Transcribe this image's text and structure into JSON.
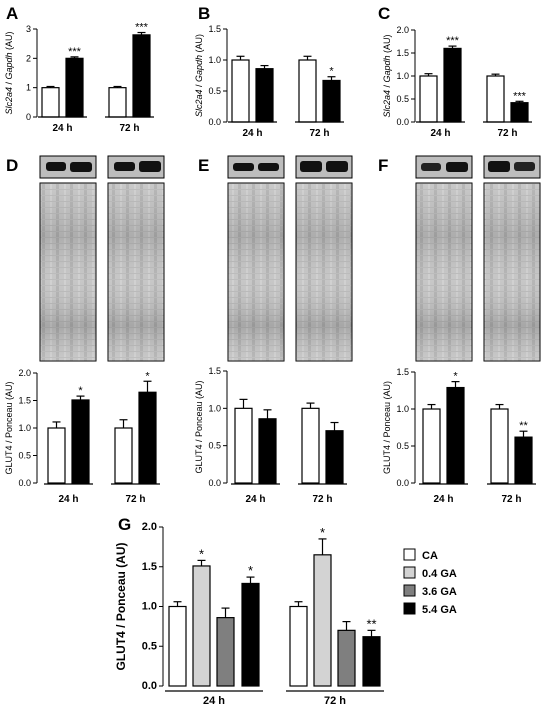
{
  "colors": {
    "CA": "#ffffff",
    "GA_0_4": "#d3d3d3",
    "GA_3_6": "#7f7f7f",
    "GA_5_4": "#000000",
    "blot_bg": "#bdbdbd",
    "blot_band": "#111111"
  },
  "panels": {
    "A": {
      "letter": "A",
      "ylabel": "Slc2a4 / Gapdh (AU)",
      "groups": [
        "24 h",
        "72 h"
      ]
    },
    "B": {
      "letter": "B",
      "ylabel": "Slc2a4 / Gapdh (AU)",
      "groups": [
        "24 h",
        "72 h"
      ]
    },
    "C": {
      "letter": "C",
      "ylabel": "Slc2a4 / Gapdh (AU)",
      "groups": [
        "24 h",
        "72 h"
      ]
    },
    "D": {
      "letter": "D",
      "ylabel": "GLUT4 / Ponceau (AU)",
      "groups": [
        "24 h",
        "72 h"
      ]
    },
    "E": {
      "letter": "E",
      "ylabel": "GLUT4 / Ponceau (AU)",
      "groups": [
        "24 h",
        "72 h"
      ]
    },
    "F": {
      "letter": "F",
      "ylabel": "GLUT4 / Ponceau (AU)",
      "groups": [
        "24 h",
        "72 h"
      ]
    },
    "G": {
      "letter": "G",
      "ylabel": "GLUT4 / Ponceau (AU)",
      "groups": [
        "24 h",
        "72 h"
      ]
    }
  },
  "legend": [
    "CA",
    "0.4 GA",
    "3.6 GA",
    "5.4 GA"
  ],
  "chart_data": [
    {
      "panel": "A",
      "type": "bar",
      "ylabel": "Slc2a4 / Gapdh (AU)",
      "categories": [
        "24 h",
        "72 h"
      ],
      "ylim": [
        0,
        3
      ],
      "yticks": [
        "0",
        "1",
        "2",
        "3"
      ],
      "series": [
        {
          "fill": "#ffffff",
          "values": [
            1.0,
            1.0
          ],
          "errors": [
            0.04,
            0.04
          ]
        },
        {
          "fill": "#000000",
          "values": [
            2.0,
            2.8
          ],
          "errors": [
            0.05,
            0.08
          ]
        }
      ],
      "annotations": [
        "***",
        "***"
      ]
    },
    {
      "panel": "B",
      "type": "bar",
      "ylabel": "Slc2a4 / Gapdh (AU)",
      "categories": [
        "24 h",
        "72 h"
      ],
      "ylim": [
        0,
        1.5
      ],
      "yticks": [
        "0.0",
        "0.5",
        "1.0",
        "1.5"
      ],
      "series": [
        {
          "fill": "#ffffff",
          "values": [
            1.0,
            1.0
          ],
          "errors": [
            0.06,
            0.06
          ]
        },
        {
          "fill": "#000000",
          "values": [
            0.86,
            0.67
          ],
          "errors": [
            0.05,
            0.06
          ]
        }
      ],
      "annotations": [
        "",
        "*"
      ]
    },
    {
      "panel": "C",
      "type": "bar",
      "ylabel": "Slc2a4 / Gapdh (AU)",
      "categories": [
        "24 h",
        "72 h"
      ],
      "ylim": [
        0,
        2.0
      ],
      "yticks": [
        "0.0",
        "0.5",
        "1.0",
        "1.5",
        "2.0"
      ],
      "series": [
        {
          "fill": "#ffffff",
          "values": [
            1.0,
            1.0
          ],
          "errors": [
            0.05,
            0.04
          ]
        },
        {
          "fill": "#000000",
          "values": [
            1.6,
            0.42
          ],
          "errors": [
            0.05,
            0.03
          ]
        }
      ],
      "annotations": [
        "***",
        "***"
      ]
    },
    {
      "panel": "D",
      "type": "bar",
      "ylabel": "GLUT4 / Ponceau (AU)",
      "categories": [
        "24 h",
        "72 h"
      ],
      "ylim": [
        0,
        2.0
      ],
      "yticks": [
        "0.0",
        "0.5",
        "1.0",
        "1.5",
        "2.0"
      ],
      "series": [
        {
          "fill": "#ffffff",
          "values": [
            1.0,
            1.0
          ],
          "errors": [
            0.11,
            0.15
          ]
        },
        {
          "fill": "#000000",
          "values": [
            1.51,
            1.65
          ],
          "errors": [
            0.07,
            0.2
          ]
        }
      ],
      "annotations": [
        "*",
        "*"
      ]
    },
    {
      "panel": "E",
      "type": "bar",
      "ylabel": "GLUT4 / Ponceau (AU)",
      "categories": [
        "24 h",
        "72 h"
      ],
      "ylim": [
        0,
        1.5
      ],
      "yticks": [
        "0.0",
        "0.5",
        "1.0",
        "1.5"
      ],
      "series": [
        {
          "fill": "#ffffff",
          "values": [
            1.0,
            1.0
          ],
          "errors": [
            0.12,
            0.07
          ]
        },
        {
          "fill": "#000000",
          "values": [
            0.86,
            0.7
          ],
          "errors": [
            0.12,
            0.11
          ]
        }
      ],
      "annotations": [
        "",
        ""
      ]
    },
    {
      "panel": "F",
      "type": "bar",
      "ylabel": "GLUT4 / Ponceau (AU)",
      "categories": [
        "24 h",
        "72 h"
      ],
      "ylim": [
        0,
        1.5
      ],
      "yticks": [
        "0.0",
        "0.5",
        "1.0",
        "1.5"
      ],
      "series": [
        {
          "fill": "#ffffff",
          "values": [
            1.0,
            1.0
          ],
          "errors": [
            0.06,
            0.06
          ]
        },
        {
          "fill": "#000000",
          "values": [
            1.29,
            0.62
          ],
          "errors": [
            0.08,
            0.08
          ]
        }
      ],
      "annotations": [
        "*",
        "**"
      ]
    },
    {
      "panel": "G",
      "type": "bar",
      "ylabel": "GLUT4 / Ponceau (AU)",
      "categories": [
        "24 h",
        "72 h"
      ],
      "ylim": [
        0,
        2.0
      ],
      "yticks": [
        "0.0",
        "0.5",
        "1.0",
        "1.5",
        "2.0"
      ],
      "series": [
        {
          "name": "CA",
          "fill": "#ffffff",
          "values": [
            1.0,
            1.0
          ],
          "errors": [
            0.06,
            0.06
          ]
        },
        {
          "name": "0.4 GA",
          "fill": "#d3d3d3",
          "values": [
            1.51,
            1.65
          ],
          "errors": [
            0.07,
            0.2
          ]
        },
        {
          "name": "3.6 GA",
          "fill": "#7f7f7f",
          "values": [
            0.86,
            0.7
          ],
          "errors": [
            0.12,
            0.11
          ]
        },
        {
          "name": "5.4 GA",
          "fill": "#000000",
          "values": [
            1.29,
            0.62
          ],
          "errors": [
            0.08,
            0.08
          ]
        }
      ],
      "annotations": [
        [
          "",
          "*",
          "",
          "*"
        ],
        [
          "",
          "*",
          "",
          "**"
        ]
      ],
      "legend_position": "right"
    }
  ]
}
